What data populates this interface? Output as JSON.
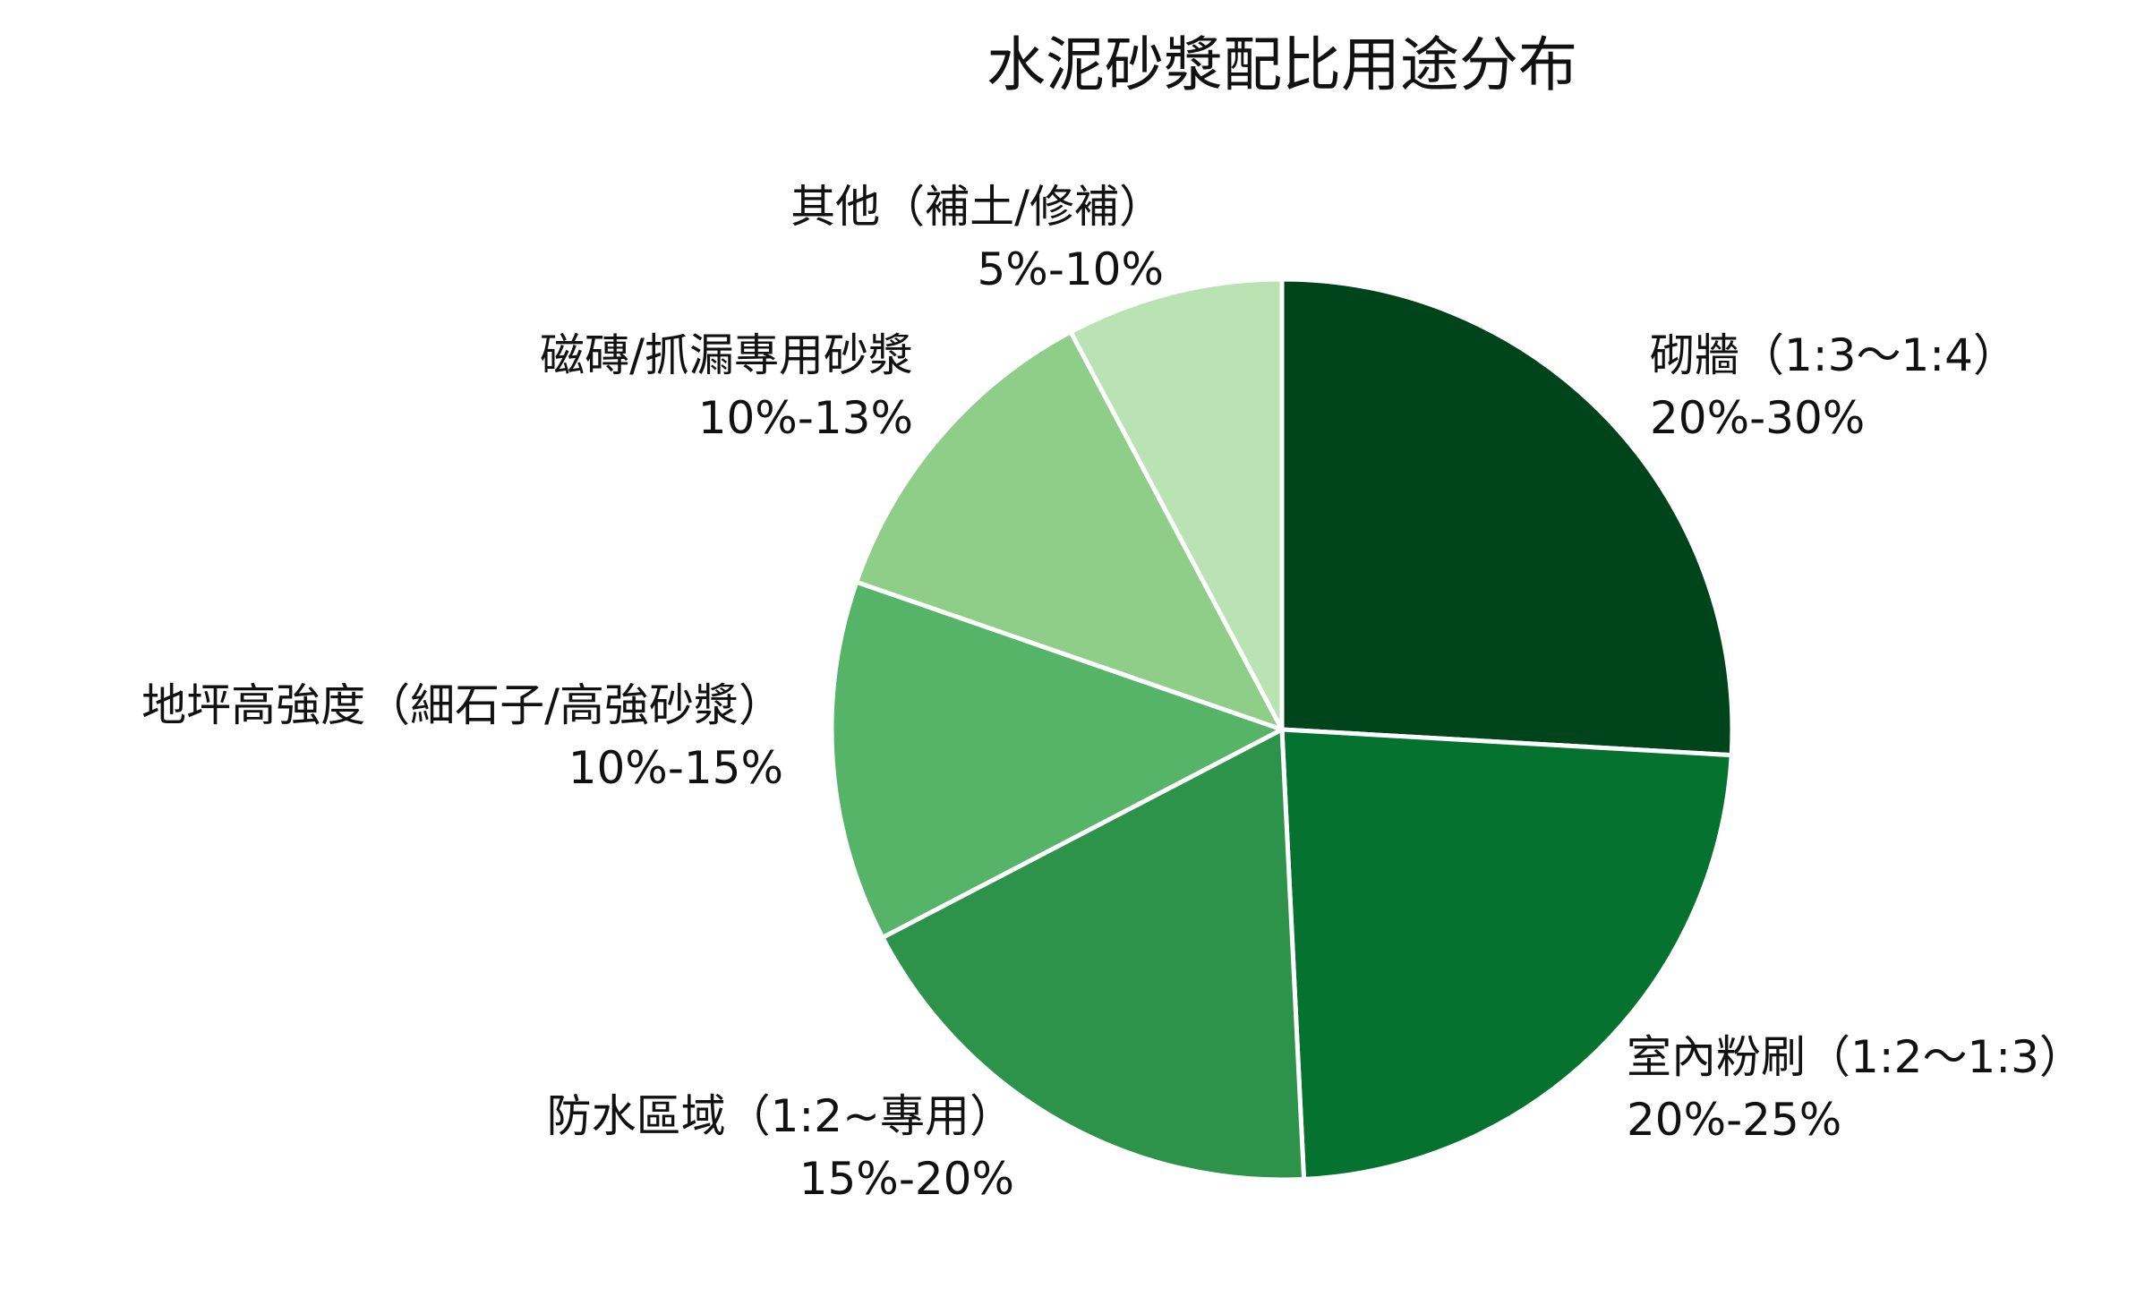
{
  "chart_data": {
    "type": "pie",
    "title": "水泥砂漿配比用途分布",
    "slices": [
      {
        "label": "砌牆（1:3～1:4）",
        "range": "20%-30%",
        "value": 25,
        "color": "#00441b"
      },
      {
        "label": "室內粉刷（1:2～1:3）",
        "range": "20%-25%",
        "value": 22.5,
        "color": "#06722f"
      },
      {
        "label": "防水區域（1:2~專用）",
        "range": "15%-20%",
        "value": 17.5,
        "color": "#2e934a"
      },
      {
        "label": "地坪高強度（細石子/高強砂漿）",
        "range": "10%-15%",
        "value": 12.5,
        "color": "#55b467"
      },
      {
        "label": "磁磚/抓漏專用砂漿",
        "range": "10%-13%",
        "value": 11.5,
        "color": "#8fce88"
      },
      {
        "label": "其他（補土/修補）",
        "range": "5%-10%",
        "value": 7.5,
        "color": "#b9e3b3"
      }
    ],
    "start_angle": "12 o'clock",
    "direction": "clockwise",
    "legend": "none"
  }
}
